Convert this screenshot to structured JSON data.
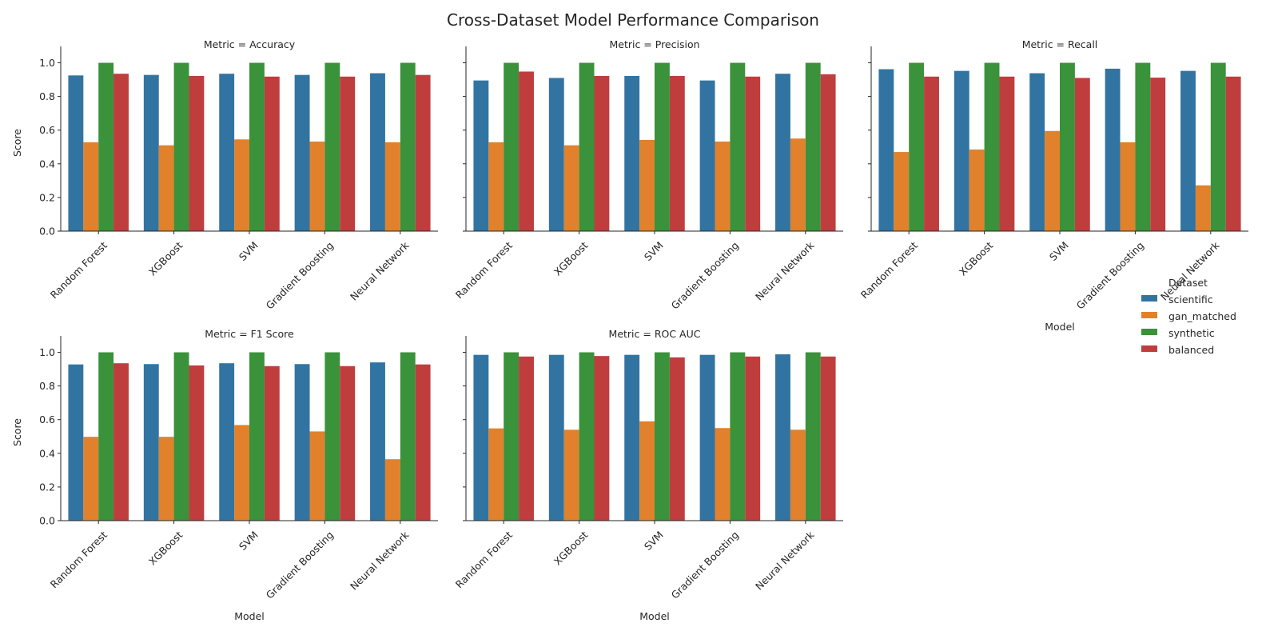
{
  "chart_data": {
    "type": "bar",
    "title": "Cross-Dataset Model Performance Comparison",
    "facet_label_prefix": "Metric = ",
    "xlabel": "Model",
    "ylabel": "Score",
    "ylim": [
      0,
      1.05
    ],
    "yticks": [
      "0.0",
      "0.2",
      "0.4",
      "0.6",
      "0.8",
      "1.0"
    ],
    "categories": [
      "Random Forest",
      "XGBoost",
      "SVM",
      "Gradient Boosting",
      "Neural Network"
    ],
    "legend": {
      "title": "Dataset",
      "placement": "right",
      "entries": [
        {
          "name": "scientific",
          "color": "#3274a1"
        },
        {
          "name": "gan_matched",
          "color": "#e1812c"
        },
        {
          "name": "synthetic",
          "color": "#3a923a"
        },
        {
          "name": "balanced",
          "color": "#c03d3e"
        }
      ]
    },
    "panels": [
      {
        "metric": "Accuracy",
        "series": [
          {
            "name": "scientific",
            "values": [
              0.925,
              0.928,
              0.935,
              0.928,
              0.938
            ]
          },
          {
            "name": "gan_matched",
            "values": [
              0.528,
              0.51,
              0.545,
              0.532,
              0.528
            ]
          },
          {
            "name": "synthetic",
            "values": [
              1.0,
              1.0,
              1.0,
              1.0,
              1.0
            ]
          },
          {
            "name": "balanced",
            "values": [
              0.935,
              0.922,
              0.918,
              0.918,
              0.928
            ]
          }
        ]
      },
      {
        "metric": "Precision",
        "series": [
          {
            "name": "scientific",
            "values": [
              0.895,
              0.91,
              0.922,
              0.895,
              0.935
            ]
          },
          {
            "name": "gan_matched",
            "values": [
              0.528,
              0.51,
              0.542,
              0.532,
              0.55
            ]
          },
          {
            "name": "synthetic",
            "values": [
              1.0,
              1.0,
              1.0,
              1.0,
              1.0
            ]
          },
          {
            "name": "balanced",
            "values": [
              0.948,
              0.922,
              0.922,
              0.918,
              0.932
            ]
          }
        ]
      },
      {
        "metric": "Recall",
        "series": [
          {
            "name": "scientific",
            "values": [
              0.962,
              0.952,
              0.938,
              0.965,
              0.952
            ]
          },
          {
            "name": "gan_matched",
            "values": [
              0.47,
              0.485,
              0.595,
              0.528,
              0.272
            ]
          },
          {
            "name": "synthetic",
            "values": [
              1.0,
              1.0,
              1.0,
              1.0,
              1.0
            ]
          },
          {
            "name": "balanced",
            "values": [
              0.918,
              0.918,
              0.91,
              0.912,
              0.918
            ]
          }
        ]
      },
      {
        "metric": "F1 Score",
        "series": [
          {
            "name": "scientific",
            "values": [
              0.928,
              0.93,
              0.935,
              0.93,
              0.94
            ]
          },
          {
            "name": "gan_matched",
            "values": [
              0.498,
              0.498,
              0.568,
              0.53,
              0.365
            ]
          },
          {
            "name": "synthetic",
            "values": [
              1.0,
              1.0,
              1.0,
              1.0,
              1.0
            ]
          },
          {
            "name": "balanced",
            "values": [
              0.935,
              0.922,
              0.918,
              0.918,
              0.928
            ]
          }
        ]
      },
      {
        "metric": "ROC AUC",
        "series": [
          {
            "name": "scientific",
            "values": [
              0.985,
              0.985,
              0.985,
              0.985,
              0.988
            ]
          },
          {
            "name": "gan_matched",
            "values": [
              0.548,
              0.54,
              0.59,
              0.55,
              0.54
            ]
          },
          {
            "name": "synthetic",
            "values": [
              1.0,
              1.0,
              1.0,
              1.0,
              1.0
            ]
          },
          {
            "name": "balanced",
            "values": [
              0.975,
              0.978,
              0.97,
              0.975,
              0.975
            ]
          }
        ]
      }
    ]
  }
}
